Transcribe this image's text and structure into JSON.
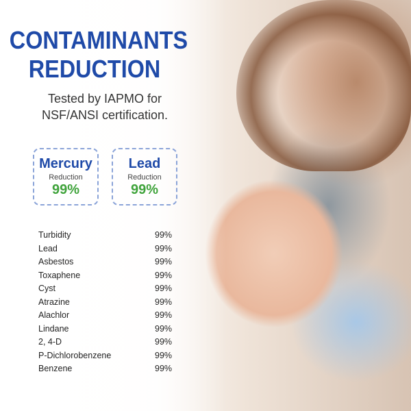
{
  "title_line1": "CONTAMINANTS",
  "title_line2": "REDUCTION",
  "subtitle_line1": "Tested by IAPMO for",
  "subtitle_line2": "NSF/ANSI certification.",
  "highlights": [
    {
      "name": "Mercury",
      "label": "Reduction",
      "value": "99%"
    },
    {
      "name": "Lead",
      "label": "Reduction",
      "value": "99%"
    }
  ],
  "contaminants": [
    {
      "name": "Turbidity",
      "value": "99%"
    },
    {
      "name": "Lead",
      "value": "99%"
    },
    {
      "name": "Asbestos",
      "value": "99%"
    },
    {
      "name": "Toxaphene",
      "value": "99%"
    },
    {
      "name": "Cyst",
      "value": "99%"
    },
    {
      "name": "Atrazine",
      "value": "99%"
    },
    {
      "name": "Alachlor",
      "value": "99%"
    },
    {
      "name": "Lindane",
      "value": "99%"
    },
    {
      "name": "2, 4-D",
      "value": "99%"
    },
    {
      "name": "P-Dichlorobenzene",
      "value": "99%"
    },
    {
      "name": "Benzene",
      "value": "99%"
    }
  ],
  "colors": {
    "title": "#1f4aa8",
    "percent": "#3fa33b",
    "border": "#8aa3d8"
  }
}
